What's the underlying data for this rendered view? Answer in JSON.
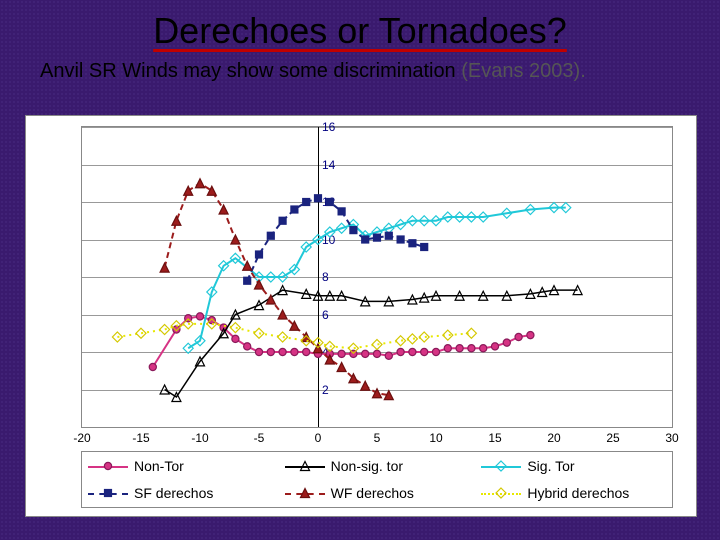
{
  "title": "Derechoes or Tornadoes?",
  "subtitle_main": "Anvil SR Winds may show some discrimination ",
  "subtitle_cite": "(Evans 2003).",
  "chart": {
    "type": "line-scatter",
    "background_color": "#ffffff",
    "grid_color": "#999999",
    "xlim": [
      -20,
      30
    ],
    "ylim": [
      0,
      16
    ],
    "xtick_step": 5,
    "ytick_step": 2,
    "ytick_color": "#000080",
    "ytick_fontsize": 12,
    "xtick_fontsize": 12,
    "yaxis_at_x": 0,
    "series": [
      {
        "id": "non_tor",
        "label": "Non-Tor",
        "color": "#d63384",
        "line_style": "solid",
        "line_width": 2,
        "marker": "circle",
        "marker_fill": "#d63384",
        "marker_stroke": "#8a1a5a",
        "marker_size": 8,
        "data": [
          [
            -14,
            3.2
          ],
          [
            -12,
            5.2
          ],
          [
            -11,
            5.8
          ],
          [
            -10,
            5.9
          ],
          [
            -9,
            5.7
          ],
          [
            -8,
            5.3
          ],
          [
            -7,
            4.7
          ],
          [
            -6,
            4.3
          ],
          [
            -5,
            4.0
          ],
          [
            -4,
            4.0
          ],
          [
            -3,
            4.0
          ],
          [
            -2,
            4.0
          ],
          [
            -1,
            4.0
          ],
          [
            0,
            3.9
          ],
          [
            1,
            3.9
          ],
          [
            2,
            3.9
          ],
          [
            3,
            3.9
          ],
          [
            4,
            3.9
          ],
          [
            5,
            3.9
          ],
          [
            6,
            3.8
          ],
          [
            7,
            4.0
          ],
          [
            8,
            4.0
          ],
          [
            9,
            4.0
          ],
          [
            10,
            4.0
          ],
          [
            11,
            4.2
          ],
          [
            12,
            4.2
          ],
          [
            13,
            4.2
          ],
          [
            14,
            4.2
          ],
          [
            15,
            4.3
          ],
          [
            16,
            4.5
          ],
          [
            17,
            4.8
          ],
          [
            18,
            4.9
          ]
        ]
      },
      {
        "id": "non_sig_tor",
        "label": "Non-sig. tor",
        "color": "#000000",
        "line_style": "solid",
        "line_width": 1.5,
        "marker": "triangle",
        "marker_fill": "none",
        "marker_stroke": "#000000",
        "marker_size": 9,
        "data": [
          [
            -13,
            2.0
          ],
          [
            -12,
            1.6
          ],
          [
            -10,
            3.5
          ],
          [
            -8,
            5.0
          ],
          [
            -7,
            6.0
          ],
          [
            -5,
            6.5
          ],
          [
            -3,
            7.3
          ],
          [
            -1,
            7.1
          ],
          [
            0,
            7.0
          ],
          [
            1,
            7.0
          ],
          [
            2,
            7.0
          ],
          [
            4,
            6.7
          ],
          [
            6,
            6.7
          ],
          [
            8,
            6.8
          ],
          [
            9,
            6.9
          ],
          [
            10,
            7.0
          ],
          [
            12,
            7.0
          ],
          [
            14,
            7.0
          ],
          [
            16,
            7.0
          ],
          [
            18,
            7.1
          ],
          [
            19,
            7.2
          ],
          [
            20,
            7.3
          ],
          [
            22,
            7.3
          ]
        ]
      },
      {
        "id": "sig_tor",
        "label": "Sig. Tor",
        "color": "#20c8d8",
        "line_style": "solid",
        "line_width": 2,
        "marker": "diamond",
        "marker_fill": "none",
        "marker_stroke": "#20c8d8",
        "marker_size": 10,
        "data": [
          [
            -11,
            4.2
          ],
          [
            -10,
            4.6
          ],
          [
            -9,
            7.2
          ],
          [
            -8,
            8.6
          ],
          [
            -7,
            9.0
          ],
          [
            -5,
            8.0
          ],
          [
            -4,
            8.0
          ],
          [
            -3,
            8.0
          ],
          [
            -2,
            8.4
          ],
          [
            -1,
            9.6
          ],
          [
            0,
            10.0
          ],
          [
            1,
            10.4
          ],
          [
            2,
            10.6
          ],
          [
            3,
            10.8
          ],
          [
            4,
            10.2
          ],
          [
            5,
            10.4
          ],
          [
            6,
            10.6
          ],
          [
            7,
            10.8
          ],
          [
            8,
            11.0
          ],
          [
            9,
            11.0
          ],
          [
            10,
            11.0
          ],
          [
            11,
            11.2
          ],
          [
            12,
            11.2
          ],
          [
            13,
            11.2
          ],
          [
            14,
            11.2
          ],
          [
            16,
            11.4
          ],
          [
            18,
            11.6
          ],
          [
            20,
            11.7
          ],
          [
            21,
            11.7
          ]
        ]
      },
      {
        "id": "sf_derechos",
        "label": "SF derechos",
        "color": "#1a237e",
        "line_style": "dashed",
        "line_width": 2,
        "marker": "square",
        "marker_fill": "#1a237e",
        "marker_stroke": "#1a237e",
        "marker_size": 7,
        "data": [
          [
            -6,
            7.8
          ],
          [
            -5,
            9.2
          ],
          [
            -4,
            10.2
          ],
          [
            -3,
            11.0
          ],
          [
            -2,
            11.6
          ],
          [
            -1,
            12.0
          ],
          [
            0,
            12.2
          ],
          [
            1,
            12.0
          ],
          [
            2,
            11.5
          ],
          [
            3,
            10.5
          ],
          [
            4,
            10.0
          ],
          [
            5,
            10.1
          ],
          [
            6,
            10.2
          ],
          [
            7,
            10.0
          ],
          [
            8,
            9.8
          ],
          [
            9,
            9.6
          ]
        ]
      },
      {
        "id": "wf_derechos",
        "label": "WF derechos",
        "color": "#9c1c1c",
        "line_style": "dashed",
        "line_width": 2,
        "marker": "triangle",
        "marker_fill": "#9c1c1c",
        "marker_stroke": "#6b0f0f",
        "marker_size": 9,
        "data": [
          [
            -13,
            8.5
          ],
          [
            -12,
            11.0
          ],
          [
            -11,
            12.6
          ],
          [
            -10,
            13.0
          ],
          [
            -9,
            12.6
          ],
          [
            -8,
            11.6
          ],
          [
            -7,
            10.0
          ],
          [
            -6,
            8.6
          ],
          [
            -5,
            7.6
          ],
          [
            -4,
            6.8
          ],
          [
            -3,
            6.0
          ],
          [
            -2,
            5.4
          ],
          [
            -1,
            4.8
          ],
          [
            0,
            4.2
          ],
          [
            1,
            3.6
          ],
          [
            2,
            3.2
          ],
          [
            3,
            2.6
          ],
          [
            4,
            2.2
          ],
          [
            5,
            1.8
          ],
          [
            6,
            1.7
          ]
        ]
      },
      {
        "id": "hybrid_derechos",
        "label": "Hybrid derechos",
        "color": "#e8e800",
        "line_style": "dotted",
        "line_width": 2,
        "marker": "diamond",
        "marker_fill": "none",
        "marker_stroke": "#d4c800",
        "marker_size": 10,
        "data": [
          [
            -17,
            4.8
          ],
          [
            -15,
            5.0
          ],
          [
            -13,
            5.2
          ],
          [
            -12,
            5.4
          ],
          [
            -11,
            5.5
          ],
          [
            -9,
            5.5
          ],
          [
            -7,
            5.3
          ],
          [
            -5,
            5.0
          ],
          [
            -3,
            4.8
          ],
          [
            -1,
            4.6
          ],
          [
            0,
            4.5
          ],
          [
            1,
            4.3
          ],
          [
            3,
            4.2
          ],
          [
            5,
            4.4
          ],
          [
            7,
            4.6
          ],
          [
            8,
            4.7
          ],
          [
            9,
            4.8
          ],
          [
            11,
            4.9
          ],
          [
            13,
            5.0
          ]
        ]
      }
    ],
    "legend": {
      "columns": 3,
      "rows": 2,
      "fontsize": 14
    }
  }
}
